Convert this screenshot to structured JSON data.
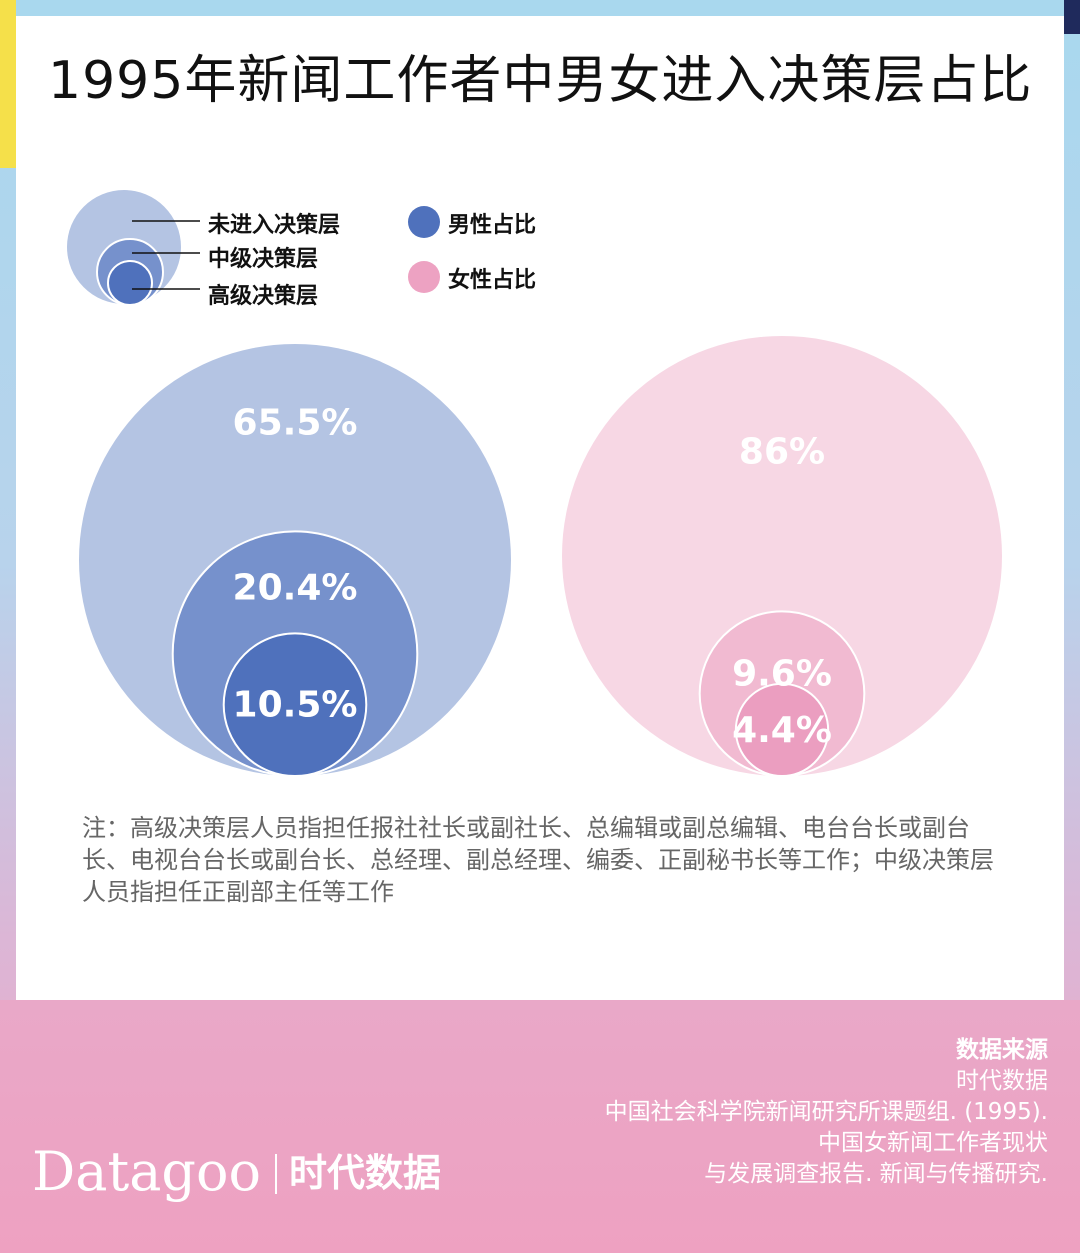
{
  "title": "1995年新闻工作者中男女进入决策层占比",
  "legend": {
    "level_labels": [
      "未进入决策层",
      "中级决策层",
      "高级决策层"
    ],
    "gender_labels": [
      "男性占比",
      "女性占比"
    ]
  },
  "chart_data": {
    "type": "nested-bubble",
    "title": "1995年新闻工作者中男女进入决策层占比",
    "levels": [
      "未进入决策层",
      "中级决策层",
      "高级决策层"
    ],
    "series": [
      {
        "name": "男性占比",
        "values": [
          65.5,
          20.4,
          10.5
        ],
        "labels": [
          "65.5%",
          "20.4%",
          "10.5%"
        ],
        "colors": [
          "#b4c4e3",
          "#7691cc",
          "#4f71bc"
        ]
      },
      {
        "name": "女性占比",
        "values": [
          86,
          9.6,
          4.4
        ],
        "labels": [
          "86%",
          "9.6%",
          "4.4%"
        ],
        "colors": [
          "#f7d7e4",
          "#f1bad1",
          "#eb9ec0"
        ]
      }
    ]
  },
  "note": "注：高级决策层人员指担任报社社长或副社长、总编辑或副总编辑、电台台长或副台长、电视台台长或副台长、总经理、副总经理、编委、正副秘书长等工作；中级决策层人员指担任正副部主任等工作",
  "source": {
    "title": "数据来源",
    "lines": [
      "时代数据",
      "中国社会科学院新闻研究所课题组. (1995).",
      "中国女新闻工作者现状",
      "与发展调查报告. 新闻与传播研究."
    ]
  },
  "brand": {
    "en": "Datagoo",
    "cn": "时代数据"
  },
  "colors": {
    "male_legend": "#4f71bc",
    "female_legend": "#eda2c2",
    "frame_blue": "#a9d8ee",
    "accent_yellow": "#f5e04a",
    "accent_navy": "#1f2a5c",
    "bottom_pink": "#eea1c1"
  }
}
